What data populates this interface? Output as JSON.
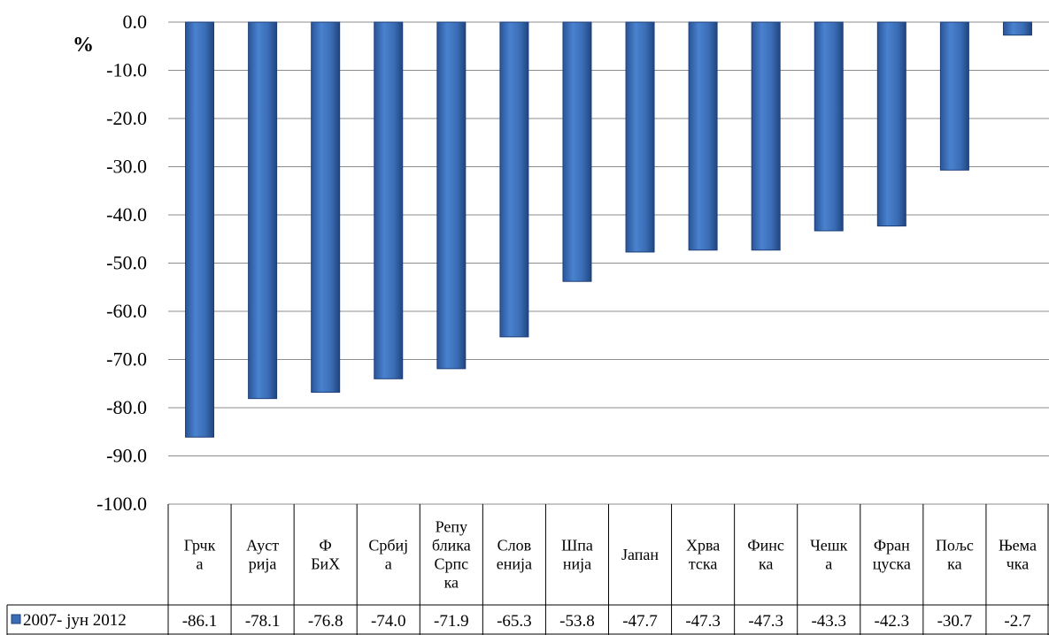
{
  "chart_data": {
    "type": "bar",
    "ylabel": "%",
    "ylim": [
      -100,
      0
    ],
    "yticks": [
      "0.0",
      "-10.0",
      "-20.0",
      "-30.0",
      "-40.0",
      "-50.0",
      "-60.0",
      "-70.0",
      "-80.0",
      "-90.0",
      "-100.0"
    ],
    "grid": true,
    "categories": [
      [
        "Грчк",
        "а"
      ],
      [
        "Ауст",
        "рија"
      ],
      [
        "Ф",
        "БиХ"
      ],
      [
        "Србиј",
        "а"
      ],
      [
        "Репу",
        "блика",
        "Српс",
        "ка"
      ],
      [
        "Слов",
        "енија"
      ],
      [
        "Шпа",
        "нија"
      ],
      [
        "Јапан"
      ],
      [
        "Хрва",
        "тска"
      ],
      [
        "Финс",
        "ка"
      ],
      [
        "Чешк",
        "а"
      ],
      [
        "Фран",
        "цуска"
      ],
      [
        "Пољс",
        "ка"
      ],
      [
        "Њема",
        "чка"
      ]
    ],
    "series": [
      {
        "name": "2007- јун 2012",
        "values": [
          -86.1,
          -78.1,
          -76.8,
          -74.0,
          -71.9,
          -65.3,
          -53.8,
          -47.7,
          -47.3,
          -47.3,
          -43.3,
          -42.3,
          -30.7,
          -2.7
        ],
        "labels": [
          "-86.1",
          "-78.1",
          "-76.8",
          "-74.0",
          "-71.9",
          "-65.3",
          "-53.8",
          "-47.7",
          "-47.3",
          "-47.3",
          "-43.3",
          "-42.3",
          "-30.7",
          "-2.7"
        ],
        "color": "#3a6db5"
      }
    ],
    "legend": "bottom-left data table"
  }
}
